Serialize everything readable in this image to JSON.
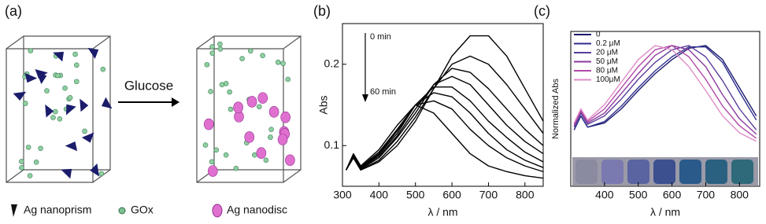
{
  "panel_a": {
    "label": "(a)",
    "arrow_label": "Glucose",
    "legend": [
      "Ag nanoprism",
      "GOx",
      "Ag nanodisc"
    ]
  },
  "chart_data": [
    {
      "type": "line",
      "label": "(b)",
      "xlabel": "λ / nm",
      "ylabel": "Abs",
      "annotations": [
        "0 min",
        "60 min"
      ],
      "x": [
        310,
        330,
        350,
        400,
        450,
        500,
        550,
        600,
        650,
        700,
        750,
        800,
        850
      ],
      "series": [
        {
          "color": "#000000",
          "values": [
            0.07,
            0.085,
            0.07,
            0.08,
            0.1,
            0.13,
            0.17,
            0.21,
            0.235,
            0.235,
            0.21,
            0.17,
            0.13
          ]
        },
        {
          "color": "#000000",
          "values": [
            0.07,
            0.085,
            0.07,
            0.082,
            0.105,
            0.135,
            0.17,
            0.2,
            0.21,
            0.2,
            0.175,
            0.145,
            0.115
          ]
        },
        {
          "color": "#000000",
          "values": [
            0.07,
            0.086,
            0.071,
            0.085,
            0.11,
            0.14,
            0.175,
            0.195,
            0.19,
            0.17,
            0.145,
            0.12,
            0.1
          ]
        },
        {
          "color": "#000000",
          "values": [
            0.07,
            0.087,
            0.072,
            0.087,
            0.112,
            0.145,
            0.175,
            0.185,
            0.175,
            0.15,
            0.125,
            0.105,
            0.09
          ]
        },
        {
          "color": "#000000",
          "values": [
            0.07,
            0.087,
            0.072,
            0.089,
            0.115,
            0.15,
            0.172,
            0.172,
            0.155,
            0.13,
            0.11,
            0.092,
            0.08
          ]
        },
        {
          "color": "#000000",
          "values": [
            0.07,
            0.088,
            0.073,
            0.09,
            0.118,
            0.15,
            0.165,
            0.16,
            0.14,
            0.115,
            0.095,
            0.082,
            0.073
          ]
        },
        {
          "color": "#000000",
          "values": [
            0.07,
            0.088,
            0.074,
            0.092,
            0.12,
            0.15,
            0.155,
            0.145,
            0.12,
            0.1,
            0.085,
            0.075,
            0.068
          ]
        },
        {
          "color": "#000000",
          "values": [
            0.07,
            0.09,
            0.075,
            0.095,
            0.125,
            0.15,
            0.14,
            0.115,
            0.09,
            0.075,
            0.068,
            0.063,
            0.06
          ]
        }
      ],
      "xlim": [
        300,
        850
      ],
      "xticks": [
        300,
        400,
        500,
        600,
        700,
        800
      ],
      "ylim": [
        0.05,
        0.25
      ],
      "yticks": [
        0.1,
        0.2
      ]
    },
    {
      "type": "line",
      "label": "(c)",
      "xlabel": "λ / nm",
      "ylabel": "Normalized Abs",
      "legend": "upper left",
      "x": [
        310,
        330,
        350,
        400,
        450,
        500,
        550,
        600,
        650,
        700,
        750,
        800,
        850
      ],
      "series": [
        {
          "name": "0",
          "color": "#1a1a6e",
          "values": [
            0.4,
            0.5,
            0.42,
            0.45,
            0.55,
            0.68,
            0.8,
            0.9,
            0.98,
            1,
            0.9,
            0.7,
            0.5
          ]
        },
        {
          "name": "0.2 μM",
          "color": "#2e2e8e",
          "values": [
            0.4,
            0.5,
            0.42,
            0.46,
            0.57,
            0.7,
            0.82,
            0.92,
            0.99,
            0.99,
            0.88,
            0.67,
            0.47
          ]
        },
        {
          "name": "20  μM",
          "color": "#5a3d9a",
          "values": [
            0.42,
            0.52,
            0.44,
            0.5,
            0.62,
            0.76,
            0.88,
            0.97,
            1,
            0.92,
            0.75,
            0.55,
            0.4
          ]
        },
        {
          "name": "50  μM",
          "color": "#8b3a9e",
          "values": [
            0.43,
            0.53,
            0.45,
            0.52,
            0.66,
            0.8,
            0.93,
            1,
            0.97,
            0.85,
            0.65,
            0.48,
            0.37
          ]
        },
        {
          "name": "80  μM",
          "color": "#b04aa8",
          "values": [
            0.44,
            0.54,
            0.46,
            0.55,
            0.7,
            0.85,
            0.97,
            1,
            0.92,
            0.76,
            0.57,
            0.43,
            0.34
          ]
        },
        {
          "name": "100μM",
          "color": "#e08cc8",
          "values": [
            0.45,
            0.55,
            0.47,
            0.58,
            0.74,
            0.9,
            1,
            0.97,
            0.85,
            0.68,
            0.5,
            0.38,
            0.32
          ]
        }
      ],
      "xlim": [
        300,
        860
      ],
      "xticks": [
        400,
        500,
        600,
        700,
        800
      ],
      "ylim": [
        0,
        1.1
      ]
    }
  ]
}
